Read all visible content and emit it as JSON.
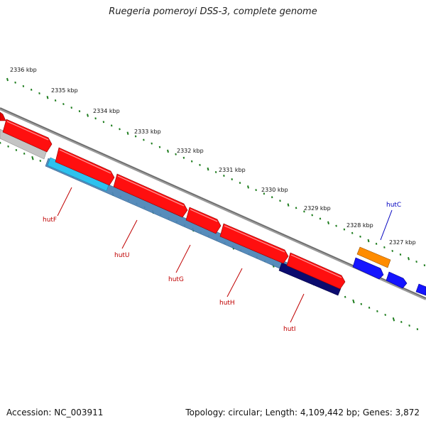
{
  "title": "Ruegeria pomeroyi DSS-3, complete genome",
  "footer": {
    "accession": "Accession: NC_003911",
    "stats": "Topology: circular; Length: 4,109,442 bp; Genes: 3,872"
  },
  "colors": {
    "backbone": "#8c8c8c",
    "tick_green": "#1e7d1e",
    "label_red": "#c00000",
    "label_blue": "#0000c0",
    "hut_cluster": "#4f86b8",
    "forward_gene": "#ff0000",
    "light_blue_gene": "#2ec1ee",
    "dark_navy_gene": "#0b0b6e",
    "orange_gene": "#ff8c00",
    "blue_gene": "#1515ff",
    "gray_gene": "#c4c4c4"
  },
  "scale_labels": [
    {
      "text": "2336 kbp"
    },
    {
      "text": "2335 kbp"
    },
    {
      "text": "2334 kbp"
    },
    {
      "text": "2333 kbp"
    },
    {
      "text": "2332 kbp"
    },
    {
      "text": "2331 kbp"
    },
    {
      "text": "2330 kbp"
    },
    {
      "text": "2329 kbp"
    },
    {
      "text": "2328 kbp"
    },
    {
      "text": "2327 kbp"
    }
  ],
  "gene_labels": [
    {
      "text": "hutF",
      "color": "#c00000"
    },
    {
      "text": "hutU",
      "color": "#c00000"
    },
    {
      "text": "hutG",
      "color": "#c00000"
    },
    {
      "text": "hutH",
      "color": "#c00000"
    },
    {
      "text": "hutI",
      "color": "#c00000"
    },
    {
      "text": "hutC",
      "color": "#0000c0"
    }
  ]
}
